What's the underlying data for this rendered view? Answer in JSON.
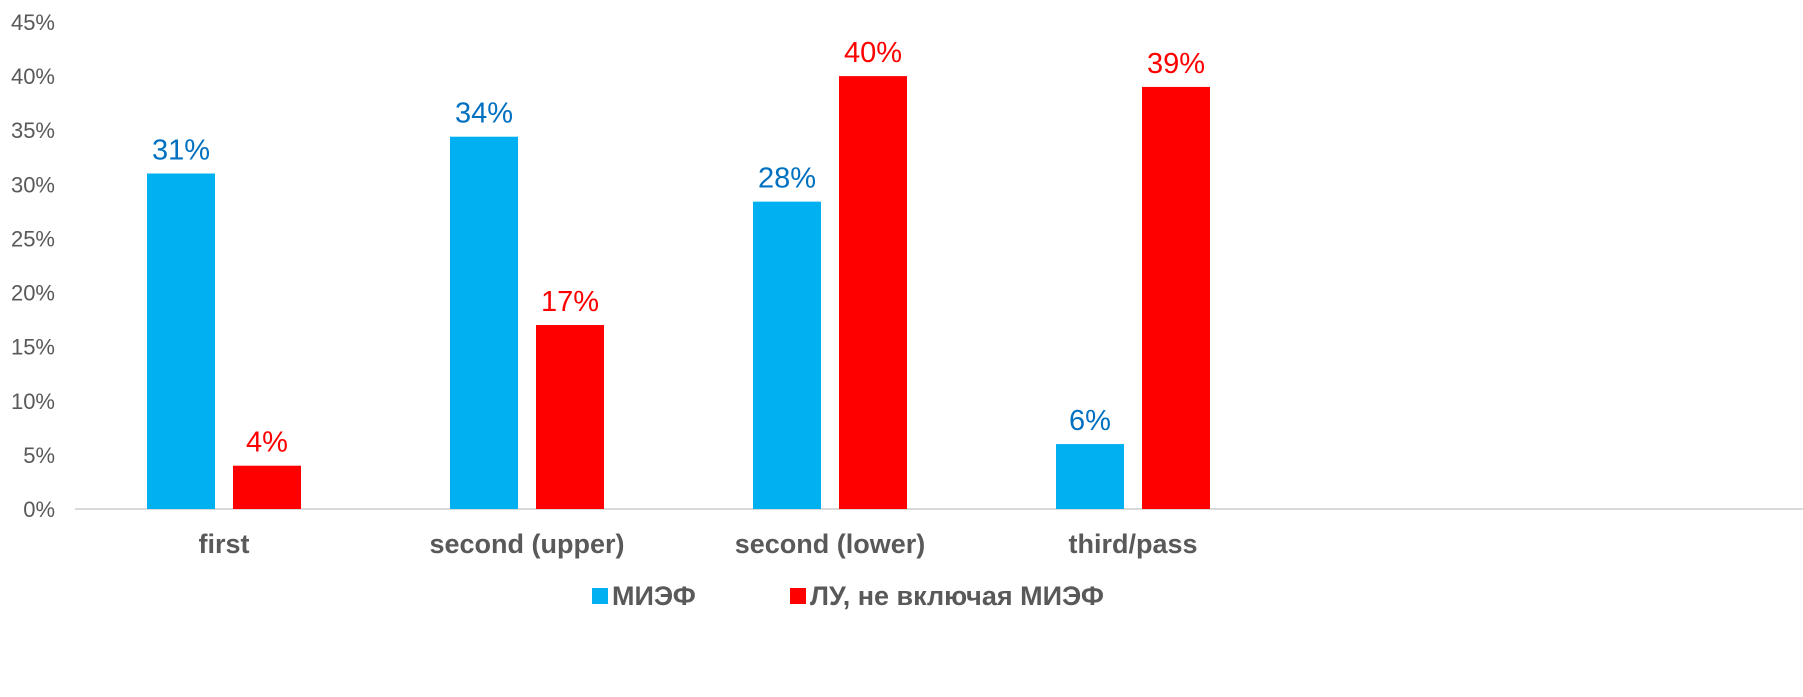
{
  "chart_data": {
    "type": "bar",
    "title": "",
    "xlabel": "",
    "ylabel": "",
    "ylim": [
      0,
      45
    ],
    "y_ticks": [
      "0%",
      "5%",
      "10%",
      "15%",
      "20%",
      "25%",
      "30%",
      "35%",
      "40%",
      "45%"
    ],
    "y_tick_values": [
      0,
      5,
      10,
      15,
      20,
      25,
      30,
      35,
      40,
      45
    ],
    "grid": false,
    "legend_position": "bottom",
    "categories": [
      "first",
      "second (upper)",
      "second (lower)",
      "third/pass"
    ],
    "series": [
      {
        "name": "МИЭФ",
        "color": "#00B0F0",
        "label_color": "#0070C0",
        "values": [
          31,
          34.4,
          28.4,
          6
        ],
        "labels": [
          "31%",
          "34%",
          "28%",
          "6%"
        ]
      },
      {
        "name": "ЛУ, не включая МИЭФ",
        "color": "#FF0000",
        "label_color": "#FF0000",
        "values": [
          4,
          17,
          40,
          39
        ],
        "labels": [
          "4%",
          "17%",
          "40%",
          "39%"
        ]
      }
    ]
  }
}
